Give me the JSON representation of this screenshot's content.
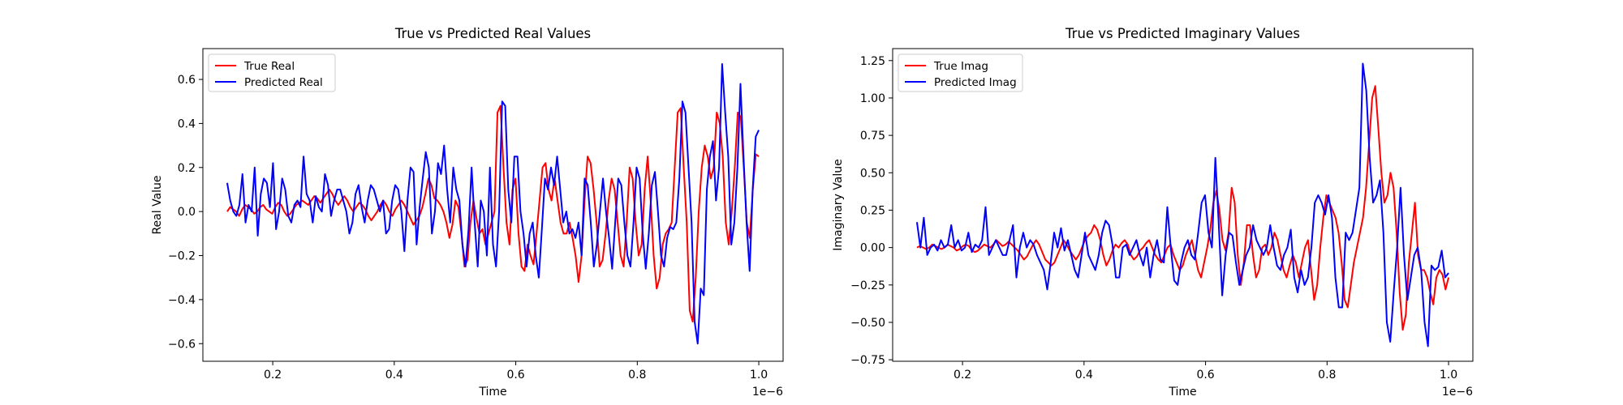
{
  "chart_data": [
    {
      "type": "line",
      "title": "True vs Predicted Real Values",
      "xlabel": "Time",
      "ylabel": "Real Value",
      "x_offset_label": "1e−6",
      "xlim": [
        0.085,
        1.04
      ],
      "ylim": [
        -0.68,
        0.74
      ],
      "xticks": [
        0.2,
        0.4,
        0.6,
        0.8,
        1.0
      ],
      "xtick_labels": [
        "0.2",
        "0.4",
        "0.6",
        "0.8",
        "1.0"
      ],
      "yticks": [
        -0.6,
        -0.4,
        -0.2,
        0.0,
        0.2,
        0.4,
        0.6
      ],
      "ytick_labels": [
        "−0.6",
        "−0.4",
        "−0.2",
        "0.0",
        "0.2",
        "0.4",
        "0.6"
      ],
      "legend_position": "top-left",
      "x_range": [
        0.125,
        1.0
      ],
      "series": [
        {
          "name": "True Real",
          "color": "#ff0000",
          "values": [
            0.0,
            0.02,
            0.01,
            0.0,
            -0.02,
            0.01,
            0.03,
            0.02,
            0.01,
            -0.01,
            0.0,
            0.02,
            0.03,
            0.01,
            0.0,
            -0.01,
            0.02,
            0.04,
            0.03,
            0.0,
            -0.02,
            -0.01,
            0.01,
            0.03,
            0.04,
            0.05,
            0.04,
            0.03,
            0.05,
            0.07,
            0.06,
            0.04,
            0.06,
            0.08,
            0.1,
            0.08,
            0.05,
            0.03,
            0.05,
            0.07,
            0.05,
            0.02,
            0.0,
            0.02,
            0.04,
            0.03,
            0.01,
            -0.02,
            -0.04,
            -0.02,
            0.0,
            0.03,
            0.05,
            0.03,
            0.0,
            -0.02,
            0.01,
            0.03,
            0.05,
            0.03,
            0.0,
            -0.03,
            -0.06,
            -0.04,
            -0.02,
            0.02,
            0.08,
            0.15,
            0.12,
            0.06,
            0.05,
            0.03,
            0.0,
            -0.05,
            -0.12,
            -0.06,
            0.05,
            0.02,
            -0.1,
            -0.25,
            -0.22,
            -0.05,
            0.05,
            -0.03,
            -0.1,
            -0.08,
            -0.15,
            -0.1,
            -0.05,
            0.0,
            0.45,
            0.48,
            0.2,
            -0.05,
            -0.15,
            0.1,
            0.15,
            -0.1,
            -0.25,
            -0.27,
            -0.15,
            -0.2,
            -0.24,
            -0.1,
            0.05,
            0.2,
            0.22,
            0.1,
            0.05,
            0.15,
            0.05,
            -0.05,
            -0.1,
            -0.1,
            -0.05,
            -0.12,
            -0.2,
            -0.32,
            -0.2,
            0.05,
            0.25,
            0.22,
            0.1,
            -0.05,
            -0.25,
            -0.22,
            -0.1,
            0.05,
            0.15,
            0.1,
            -0.05,
            -0.2,
            -0.25,
            -0.05,
            0.2,
            0.15,
            -0.05,
            -0.2,
            -0.15,
            0.1,
            0.25,
            0.05,
            -0.2,
            -0.35,
            -0.3,
            -0.15,
            -0.1,
            -0.08,
            -0.05,
            0.2,
            0.45,
            0.47,
            0.2,
            -0.05,
            -0.45,
            -0.5,
            -0.3,
            0.0,
            0.2,
            0.3,
            0.25,
            0.15,
            0.2,
            0.45,
            0.4,
            0.25,
            -0.05,
            -0.15,
            0.0,
            0.2,
            0.45,
            0.43,
            0.2,
            -0.05,
            -0.12,
            0.1,
            0.26,
            0.25
          ]
        },
        {
          "name": "Predicted Real",
          "color": "#0000ff",
          "values": [
            0.13,
            0.05,
            0.0,
            -0.02,
            0.03,
            0.17,
            -0.05,
            0.03,
            0.0,
            0.2,
            -0.11,
            0.08,
            0.15,
            0.13,
            0.02,
            0.22,
            -0.08,
            0.0,
            0.15,
            0.1,
            -0.02,
            -0.05,
            0.03,
            0.05,
            0.02,
            0.25,
            0.08,
            0.05,
            -0.05,
            0.07,
            0.02,
            0.0,
            0.17,
            0.12,
            -0.02,
            0.05,
            0.1,
            0.1,
            0.05,
            0.0,
            -0.1,
            -0.05,
            0.08,
            0.12,
            0.02,
            -0.05,
            0.05,
            0.12,
            0.1,
            0.05,
            0.0,
            0.05,
            -0.1,
            -0.08,
            0.05,
            0.12,
            0.1,
            0.0,
            -0.18,
            0.05,
            0.2,
            0.18,
            -0.15,
            0.02,
            0.15,
            0.27,
            0.2,
            -0.1,
            0.0,
            0.22,
            0.17,
            0.3,
            0.1,
            -0.05,
            0.2,
            0.1,
            0.05,
            -0.15,
            -0.25,
            -0.08,
            0.2,
            -0.05,
            -0.25,
            0.05,
            0.0,
            -0.2,
            0.2,
            -0.15,
            -0.25,
            0.0,
            0.5,
            0.48,
            0.1,
            -0.05,
            0.25,
            0.25,
            0.0,
            -0.1,
            -0.25,
            -0.1,
            -0.05,
            -0.2,
            -0.3,
            -0.08,
            0.15,
            0.1,
            0.2,
            0.12,
            0.25,
            0.1,
            -0.05,
            0.0,
            -0.1,
            -0.08,
            -0.12,
            -0.05,
            -0.2,
            0.15,
            0.12,
            -0.05,
            -0.25,
            -0.15,
            0.0,
            0.15,
            0.0,
            -0.12,
            -0.26,
            -0.05,
            0.15,
            0.12,
            -0.05,
            -0.2,
            -0.25,
            -0.05,
            0.2,
            0.15,
            -0.1,
            -0.26,
            -0.1,
            0.12,
            0.18,
            0.0,
            -0.2,
            -0.25,
            -0.12,
            -0.07,
            -0.08,
            -0.05,
            0.15,
            0.5,
            0.45,
            0.2,
            -0.05,
            -0.5,
            -0.6,
            -0.35,
            -0.38,
            0.1,
            0.25,
            0.32,
            0.05,
            0.2,
            0.67,
            0.45,
            0.25,
            -0.15,
            -0.05,
            0.2,
            0.58,
            0.25,
            -0.05,
            -0.27,
            0.1,
            0.34,
            0.37
          ]
        }
      ]
    },
    {
      "type": "line",
      "title": "True vs Predicted Imaginary Values",
      "xlabel": "Time",
      "ylabel": "Imaginary Value",
      "x_offset_label": "1e−6",
      "xlim": [
        0.085,
        1.04
      ],
      "ylim": [
        -0.76,
        1.33
      ],
      "xticks": [
        0.2,
        0.4,
        0.6,
        0.8,
        1.0
      ],
      "xtick_labels": [
        "0.2",
        "0.4",
        "0.6",
        "0.8",
        "1.0"
      ],
      "yticks": [
        -0.75,
        -0.5,
        -0.25,
        0.0,
        0.25,
        0.5,
        0.75,
        1.0,
        1.25
      ],
      "ytick_labels": [
        "−0.75",
        "−0.50",
        "−0.25",
        "0.00",
        "0.25",
        "0.50",
        "0.75",
        "1.00",
        "1.25"
      ],
      "legend_position": "top-left",
      "x_range": [
        0.125,
        1.0
      ],
      "series": [
        {
          "name": "True Imag",
          "color": "#ff0000",
          "values": [
            0.0,
            0.01,
            0.0,
            -0.01,
            0.0,
            0.02,
            0.01,
            0.0,
            -0.01,
            0.0,
            0.02,
            0.01,
            0.0,
            -0.02,
            -0.01,
            0.01,
            0.02,
            0.01,
            -0.02,
            -0.03,
            -0.02,
            0.0,
            0.02,
            0.01,
            0.0,
            0.02,
            0.05,
            0.03,
            0.01,
            0.02,
            0.04,
            0.02,
            0.0,
            -0.02,
            -0.05,
            -0.08,
            -0.06,
            -0.02,
            0.02,
            0.05,
            0.02,
            -0.03,
            -0.08,
            -0.1,
            -0.12,
            -0.1,
            -0.05,
            0.0,
            0.05,
            0.02,
            -0.02,
            -0.05,
            -0.08,
            -0.05,
            0.0,
            0.05,
            0.08,
            0.1,
            0.15,
            0.12,
            0.05,
            -0.05,
            -0.12,
            -0.08,
            -0.02,
            0.02,
            0.0,
            0.03,
            0.05,
            0.02,
            -0.05,
            -0.08,
            -0.06,
            -0.02,
            0.0,
            0.03,
            0.05,
            0.0,
            -0.05,
            -0.08,
            -0.1,
            -0.05,
            0.0,
            0.02,
            -0.05,
            -0.1,
            -0.15,
            -0.12,
            -0.05,
            0.0,
            0.05,
            -0.05,
            -0.15,
            -0.2,
            -0.1,
            0.0,
            0.12,
            0.3,
            0.38,
            0.25,
            0.05,
            -0.02,
            0.1,
            0.4,
            0.3,
            -0.05,
            -0.25,
            -0.1,
            0.15,
            0.15,
            -0.05,
            -0.2,
            -0.15,
            0.0,
            0.02,
            -0.05,
            0.0,
            0.1,
            0.05,
            -0.05,
            -0.15,
            -0.2,
            -0.12,
            -0.05,
            -0.1,
            -0.2,
            -0.1,
            0.0,
            0.05,
            -0.15,
            -0.35,
            -0.25,
            0.0,
            0.2,
            0.35,
            0.3,
            0.25,
            0.2,
            0.1,
            -0.1,
            -0.35,
            -0.4,
            -0.25,
            -0.1,
            0.0,
            0.1,
            0.2,
            0.4,
            0.7,
            1.0,
            1.08,
            0.8,
            0.5,
            0.3,
            0.35,
            0.5,
            0.4,
            0.1,
            -0.3,
            -0.55,
            -0.45,
            -0.1,
            0.1,
            0.3,
            -0.05,
            -0.15,
            -0.15,
            -0.2,
            -0.3,
            -0.38,
            -0.2,
            -0.15,
            -0.18,
            -0.28,
            -0.2
          ]
        },
        {
          "name": "Predicted Imag",
          "color": "#0000ff",
          "values": [
            0.17,
            0.0,
            0.2,
            -0.05,
            0.0,
            0.02,
            -0.02,
            0.05,
            0.0,
            0.02,
            0.15,
            0.0,
            0.05,
            -0.02,
            0.0,
            0.1,
            -0.03,
            0.02,
            0.0,
            0.05,
            0.27,
            -0.05,
            0.0,
            0.05,
            0.0,
            -0.05,
            -0.05,
            0.05,
            0.15,
            -0.2,
            0.0,
            0.1,
            0.0,
            0.05,
            0.02,
            -0.05,
            -0.1,
            -0.15,
            -0.28,
            -0.1,
            0.1,
            0.0,
            0.13,
            -0.02,
            0.05,
            -0.05,
            -0.15,
            -0.2,
            -0.05,
            0.1,
            -0.05,
            -0.1,
            -0.15,
            -0.05,
            0.1,
            0.18,
            0.15,
            0.02,
            -0.2,
            -0.2,
            0.0,
            0.02,
            -0.05,
            0.0,
            0.05,
            -0.05,
            -0.12,
            0.0,
            -0.2,
            -0.05,
            0.05,
            -0.08,
            -0.1,
            0.27,
            0.0,
            -0.22,
            -0.25,
            -0.1,
            0.0,
            0.05,
            -0.05,
            -0.08,
            0.1,
            0.3,
            0.35,
            0.1,
            0.0,
            0.6,
            0.15,
            -0.32,
            -0.05,
            0.1,
            0.08,
            -0.1,
            -0.25,
            -0.15,
            -0.05,
            0.0,
            0.15,
            0.05,
            0.0,
            -0.05,
            0.0,
            0.15,
            0.0,
            -0.12,
            -0.15,
            -0.05,
            0.0,
            0.12,
            -0.2,
            -0.3,
            -0.15,
            -0.25,
            -0.2,
            0.0,
            0.3,
            0.35,
            0.3,
            0.22,
            0.35,
            0.2,
            -0.2,
            -0.4,
            -0.4,
            0.1,
            0.05,
            0.1,
            0.25,
            0.4,
            1.23,
            1.05,
            0.6,
            0.3,
            0.35,
            0.45,
            0.1,
            -0.5,
            -0.63,
            -0.3,
            0.0,
            0.4,
            -0.05,
            -0.35,
            -0.2,
            -0.05,
            0.0,
            -0.15,
            -0.5,
            -0.66,
            -0.12,
            -0.15,
            -0.13,
            -0.02,
            -0.2,
            -0.17
          ]
        }
      ]
    }
  ]
}
